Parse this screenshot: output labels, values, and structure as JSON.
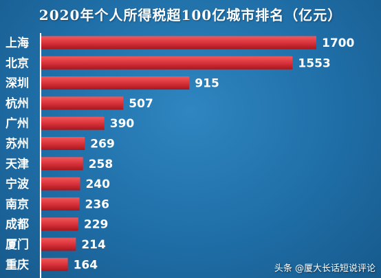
{
  "chart_data": {
    "type": "bar",
    "orientation": "horizontal",
    "title": "2020年个人所得税超100亿城市排名（亿元）",
    "categories": [
      "上海",
      "北京",
      "深圳",
      "杭州",
      "广州",
      "苏州",
      "天津",
      "宁波",
      "南京",
      "成都",
      "厦门",
      "重庆"
    ],
    "values": [
      1700,
      1553,
      915,
      507,
      390,
      269,
      258,
      240,
      236,
      229,
      214,
      164
    ],
    "xlim": [
      0,
      1700
    ],
    "grid": false,
    "legend": "none",
    "bar_color": "#d9333a"
  },
  "watermark": "头条 @厦大长话短说评论"
}
